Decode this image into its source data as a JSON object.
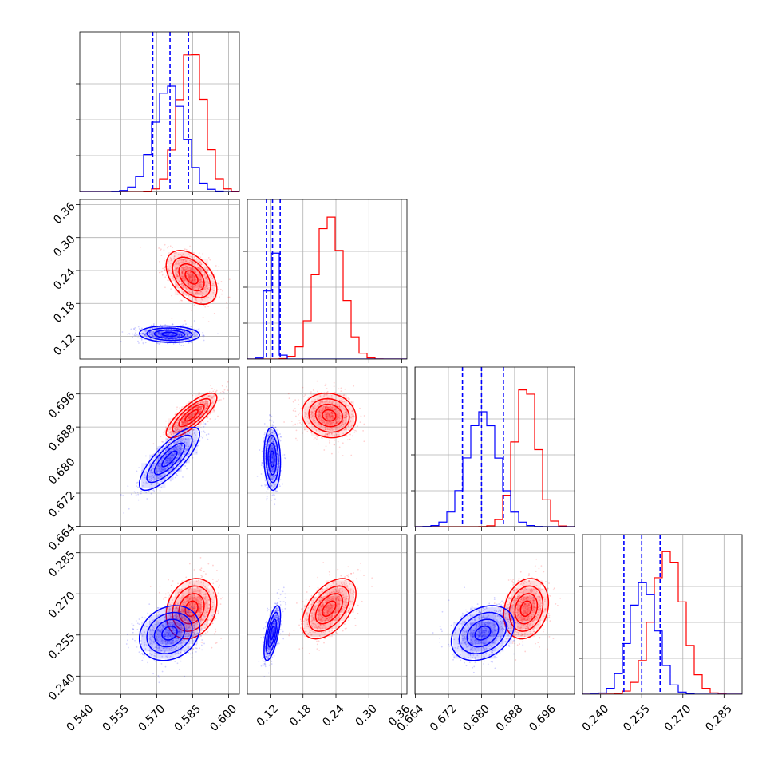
{
  "colors": {
    "series_red": "#ff0000",
    "series_blue": "#0000ff",
    "grid": "#b0b0b0",
    "background": "#ffffff"
  },
  "chart_data": {
    "type": "corner",
    "grid": true,
    "n_params": 4,
    "param_ranges": [
      [
        0.5378,
        0.6045
      ],
      [
        0.0787,
        0.3693
      ],
      [
        0.6639,
        0.7025
      ],
      [
        0.2334,
        0.2916
      ]
    ],
    "ticks": [
      [
        "0.540",
        "0.555",
        "0.570",
        "0.585",
        "0.600"
      ],
      [
        "0.12",
        "0.18",
        "0.24",
        "0.30",
        "0.36"
      ],
      [
        "0.664",
        "0.672",
        "0.680",
        "0.688",
        "0.696"
      ],
      [
        "0.240",
        "0.255",
        "0.270",
        "0.285"
      ]
    ],
    "series": [
      {
        "color": "red",
        "means": [
          0.5845,
          0.2275,
          0.6908,
          0.2646
        ],
        "sigmas": [
          0.0053,
          0.0245,
          0.0027,
          0.0055
        ],
        "correlations": [
          [
            0,
            1,
            -0.45
          ],
          [
            0,
            2,
            0.8
          ],
          [
            0,
            3,
            0.2
          ],
          [
            1,
            2,
            -0.1
          ],
          [
            1,
            3,
            0.5
          ],
          [
            2,
            3,
            0.2
          ]
        ],
        "hist_peaks": [
          1.0,
          1.0,
          1.0,
          1.0
        ]
      },
      {
        "color": "blue",
        "means": [
          0.5753,
          0.124,
          0.6803,
          0.2557
        ],
        "sigmas": [
          0.0063,
          0.0075,
          0.0038,
          0.005
        ],
        "correlations": [
          [
            0,
            1,
            -0.1
          ],
          [
            0,
            2,
            0.8
          ],
          [
            0,
            3,
            0.2
          ],
          [
            1,
            2,
            -0.1
          ],
          [
            1,
            3,
            0.65
          ],
          [
            2,
            3,
            0.3
          ]
        ],
        "hist_peaks": [
          0.74,
          0.97,
          0.8,
          0.78
        ],
        "quantiles": [
          [
            0.5683,
            0.5755,
            0.5832
          ],
          [
            0.1135,
            0.1245,
            0.1385
          ],
          [
            0.6754,
            0.68,
            0.6853
          ],
          [
            0.2485,
            0.255,
            0.2617
          ]
        ]
      }
    ]
  }
}
